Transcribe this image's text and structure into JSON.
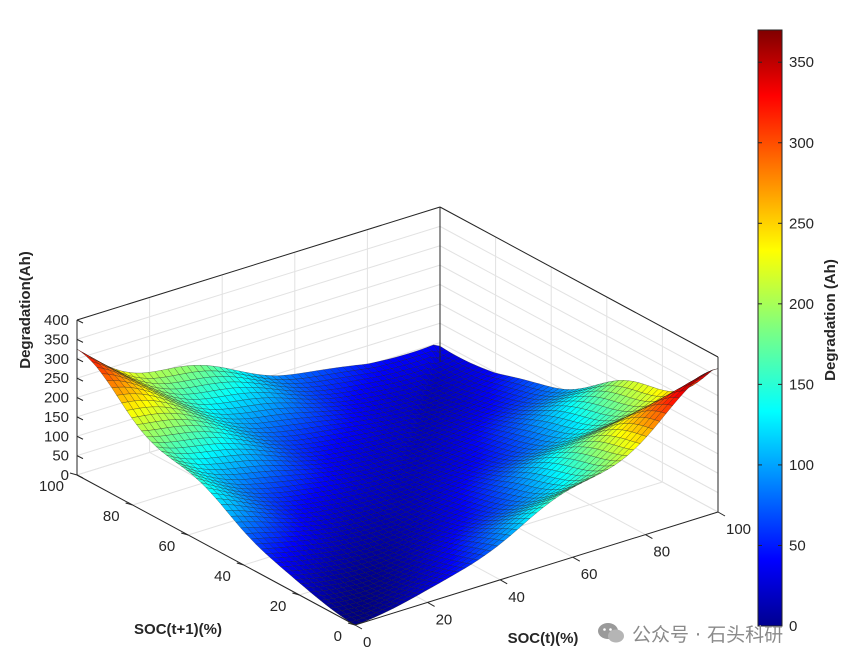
{
  "chart_data": {
    "type": "surface3d",
    "zlabel": "Degradation(Ah)",
    "ylabel": "SOC(t+1)(%)",
    "xlabel": "SOC(t)(%)",
    "zlim": [
      0,
      400
    ],
    "xlim": [
      0,
      100
    ],
    "ylim": [
      0,
      100
    ],
    "z_ticks": [
      "0",
      "50",
      "100",
      "150",
      "200",
      "250",
      "300",
      "350",
      "400"
    ],
    "y_ticks": [
      "0",
      "20",
      "40",
      "60",
      "80",
      "100"
    ],
    "x_ticks": [
      "0",
      "20",
      "40",
      "60",
      "80",
      "100"
    ],
    "colormap": "jet",
    "grid": true,
    "colorbar": {
      "label": "Degradation (Ah)",
      "range": [
        0,
        370
      ],
      "ticks": [
        "0",
        "50",
        "100",
        "150",
        "200",
        "250",
        "300",
        "350"
      ]
    },
    "surface_samples": [
      {
        "soc_t": 0,
        "soc_t1": 0,
        "degradation": 0
      },
      {
        "soc_t": 0,
        "soc_t1": 100,
        "degradation": 350
      },
      {
        "soc_t": 100,
        "soc_t1": 0,
        "degradation": 322
      },
      {
        "soc_t": 100,
        "soc_t1": 100,
        "degradation": 170
      },
      {
        "soc_t": 50,
        "soc_t1": 50,
        "degradation": 10
      }
    ]
  },
  "watermark": "公众号 · 石头科研"
}
